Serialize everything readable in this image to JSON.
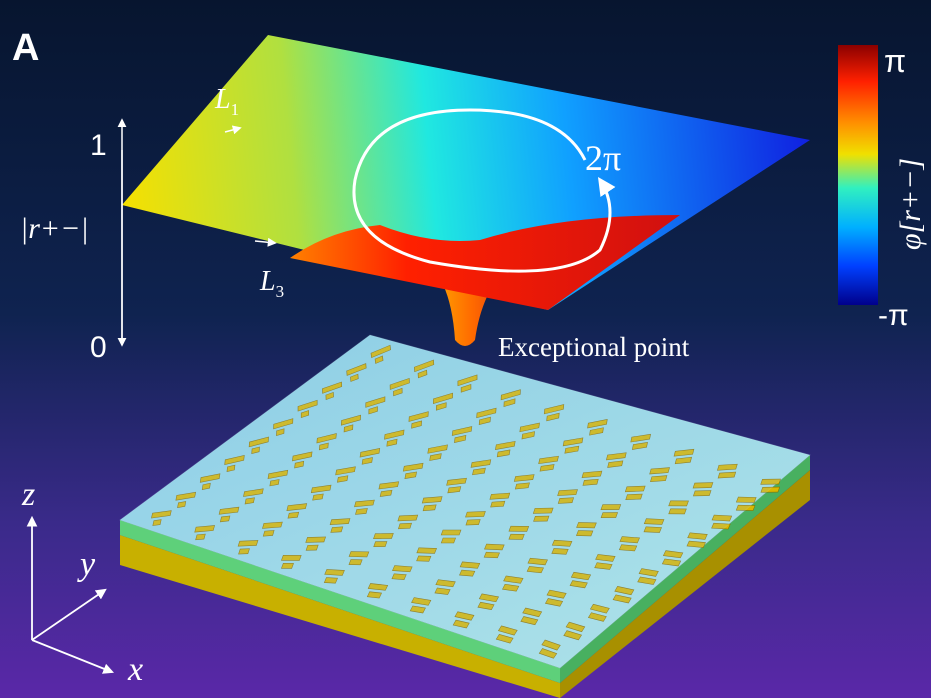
{
  "panel_label": "A",
  "surface": {
    "axis_label": "|r+−|",
    "axis_tick_top": "1",
    "axis_tick_bottom": "0",
    "loop_label_1": "L",
    "loop_label_1_sub": "1",
    "loop_label_3": "L",
    "loop_label_3_sub": "3",
    "winding_label": "2π",
    "exceptional_point_label": "Exceptional point"
  },
  "colorbar": {
    "label": "φ[r+−]",
    "max_label": "π",
    "min_label": "-π",
    "colors": [
      "#8b0000",
      "#ff2000",
      "#ff9000",
      "#f0e000",
      "#30f0c0",
      "#00b0ff",
      "#0040ff",
      "#00008b"
    ]
  },
  "coordinate_axes": {
    "x": "x",
    "y": "y",
    "z": "z"
  },
  "colors": {
    "background_top": "#08183a",
    "background_bottom": "#5a28a8",
    "gold": "#d8b800",
    "substrate_top": "#9fe8e0",
    "spacer": "#5ed07a"
  }
}
